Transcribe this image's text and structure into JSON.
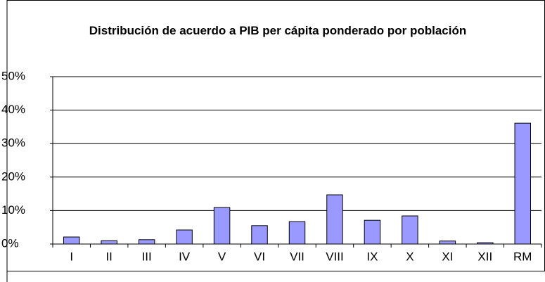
{
  "chart_data": {
    "type": "bar",
    "title": "Distribución de acuerdo a PIB per cápita ponderado por población",
    "categories": [
      "I",
      "II",
      "III",
      "IV",
      "V",
      "VI",
      "VII",
      "VIII",
      "IX",
      "X",
      "XI",
      "XII",
      "RM"
    ],
    "values": [
      2.1,
      1.0,
      1.3,
      4.2,
      10.9,
      5.5,
      6.7,
      14.7,
      7.1,
      8.4,
      0.9,
      0.4,
      36.1
    ],
    "color": "#9999ff",
    "ylim": [
      0,
      50
    ],
    "yticks": [
      {
        "value": 0,
        "label": "0%"
      },
      {
        "value": 10,
        "label": "10%"
      },
      {
        "value": 20,
        "label": "20%"
      },
      {
        "value": 30,
        "label": "30%"
      },
      {
        "value": 40,
        "label": "40%"
      },
      {
        "value": 50,
        "label": "50%"
      }
    ],
    "grid": true
  }
}
